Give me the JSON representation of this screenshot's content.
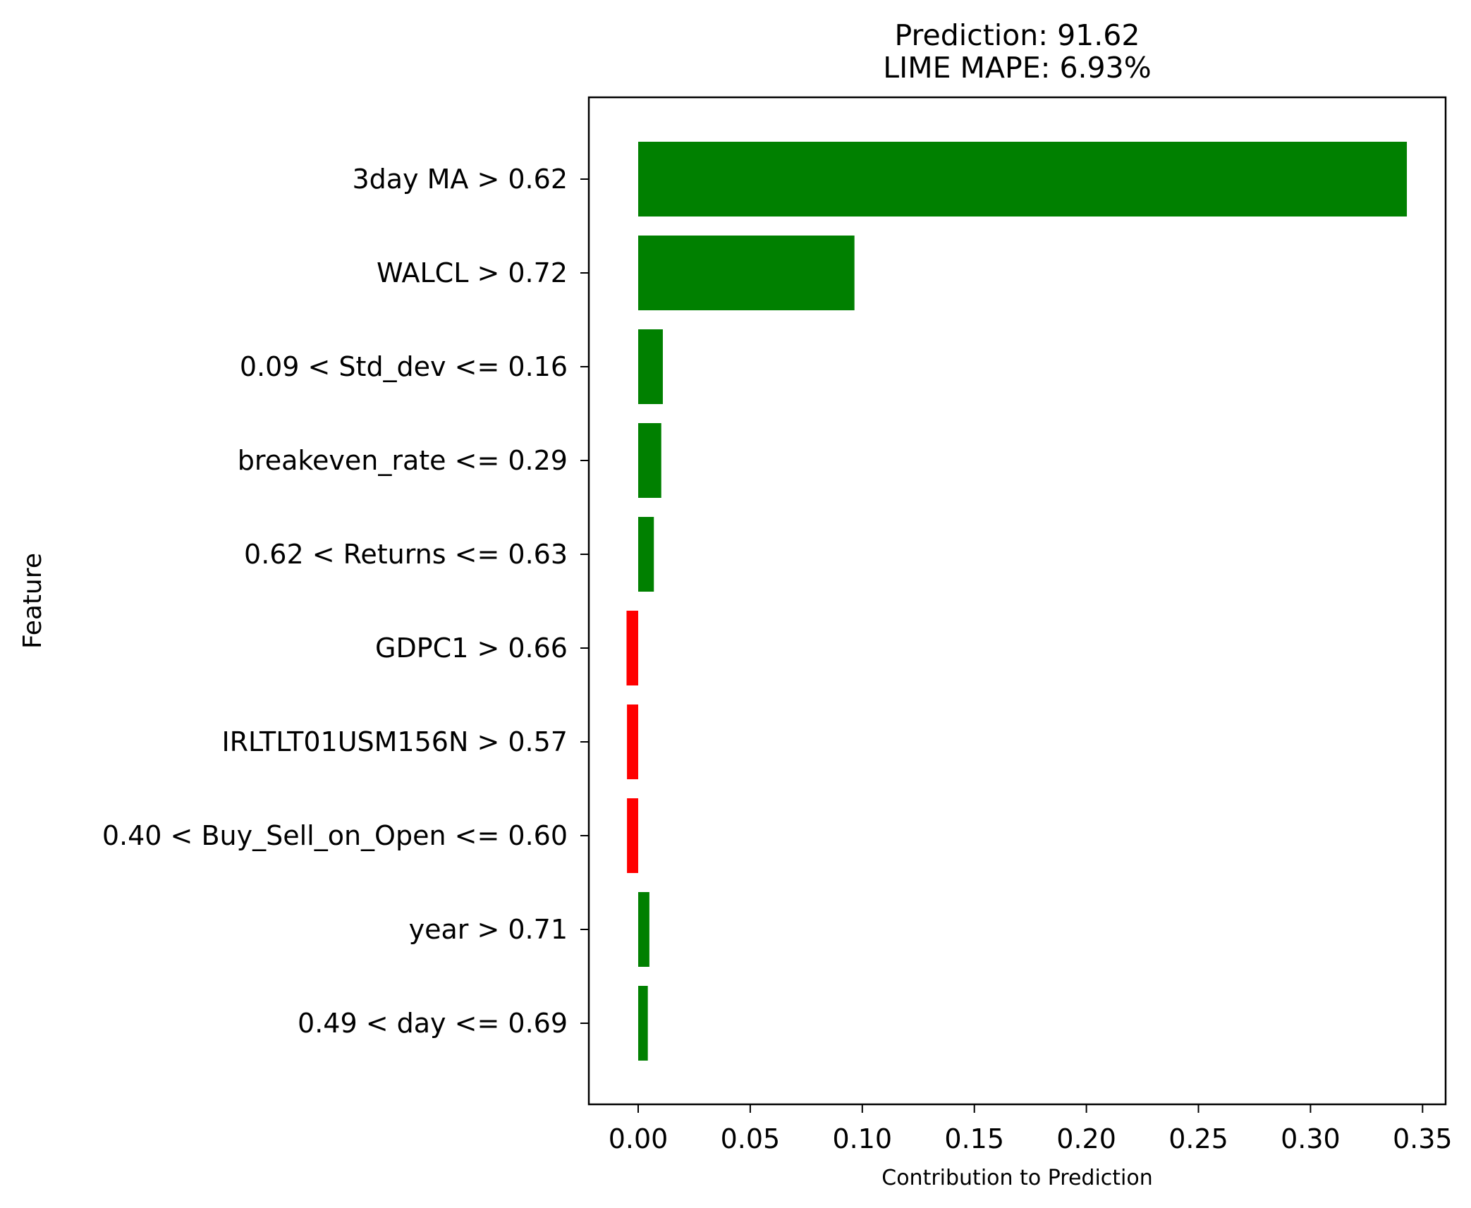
{
  "chart_data": {
    "type": "bar",
    "orientation": "horizontal",
    "title_lines": [
      "Prediction: 91.62",
      "LIME MAPE: 6.93%"
    ],
    "xlabel": "Contribution to Prediction",
    "ylabel": "Feature",
    "xlim": [
      -0.022,
      0.36
    ],
    "xticks": [
      0.0,
      0.05,
      0.1,
      0.15,
      0.2,
      0.25,
      0.3,
      0.35
    ],
    "xtick_labels": [
      "0.00",
      "0.05",
      "0.10",
      "0.15",
      "0.20",
      "0.25",
      "0.30",
      "0.35"
    ],
    "categories": [
      "3day MA > 0.62",
      "WALCL > 0.72",
      "0.09 < Std_dev <= 0.16",
      "breakeven_rate <= 0.29",
      "0.62 < Returns <= 0.63",
      "GDPC1 > 0.66",
      "IRLTLT01USM156N > 0.57",
      "0.40 < Buy_Sell_on_Open <= 0.60",
      "year > 0.71",
      "0.49 < day <= 0.69"
    ],
    "values": [
      0.343,
      0.0965,
      0.011,
      0.0103,
      0.007,
      -0.0052,
      -0.005,
      -0.005,
      0.005,
      0.0043
    ],
    "colors": {
      "positive": "#008000",
      "negative": "#ff0000"
    },
    "grid": false,
    "legend": false
  }
}
